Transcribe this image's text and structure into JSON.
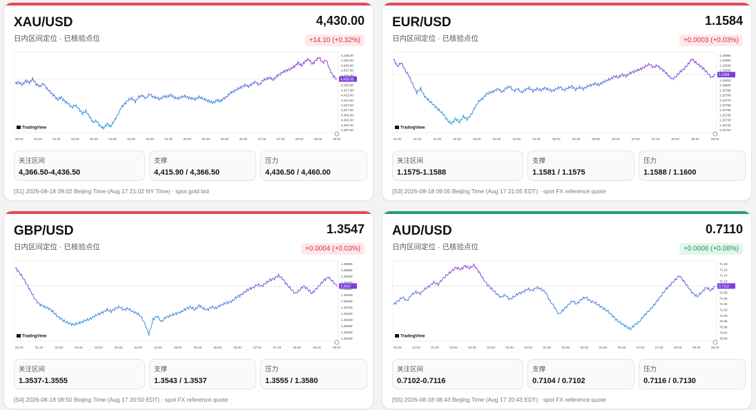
{
  "cards": [
    {
      "pair": "XAU/USD",
      "price": "4,430.00",
      "subtitle": "日内区间定位 · 已核验点位",
      "change": "+14.10 (+0.32%)",
      "accent": "#e24a52",
      "change_style": "red",
      "chart_brand": "TradingView",
      "time_ticks": [
        "00:00",
        "01:00",
        "01:30",
        "02:00",
        "02:30",
        "03:00",
        "03:30",
        "04:00",
        "04:30",
        "05:00",
        "05:30",
        "06:00",
        "06:30",
        "07:00",
        "07:30",
        "08:00",
        "08:30",
        "09:00"
      ],
      "price_ticks": [
        "4,435.00",
        "4,432.50",
        "4,430.00",
        "4,427.50",
        "4,425.00",
        "4,422.50",
        "4,420.00",
        "4,417.50",
        "4,415.00",
        "4,412.50",
        "4,410.00",
        "4,407.50",
        "4,405.00",
        "4,402.50",
        "4,400.00",
        "4,397.50"
      ],
      "current_tag": "4,430.00",
      "boxes": [
        {
          "label": "关注区间",
          "value": "4,366.50-4,436.50"
        },
        {
          "label": "支撑",
          "value": "4,415.90 / 4,366.50"
        },
        {
          "label": "压力",
          "value": "4,436.50 / 4,460.00"
        }
      ],
      "footer": "[S1] 2026-08-18 09:02 Beijing Time (Aug 17 21:02 NY Time) · spot gold bid",
      "series": [
        0.62,
        0.64,
        0.6,
        0.66,
        0.63,
        0.68,
        0.61,
        0.58,
        0.62,
        0.55,
        0.5,
        0.46,
        0.4,
        0.44,
        0.38,
        0.35,
        0.3,
        0.33,
        0.28,
        0.22,
        0.25,
        0.18,
        0.1,
        0.12,
        0.05,
        0.02,
        0.08,
        0.04,
        0.12,
        0.2,
        0.3,
        0.35,
        0.4,
        0.42,
        0.38,
        0.44,
        0.46,
        0.42,
        0.48,
        0.44,
        0.43,
        0.41,
        0.45,
        0.44,
        0.47,
        0.43,
        0.42,
        0.44,
        0.45,
        0.43,
        0.42,
        0.41,
        0.44,
        0.42,
        0.4,
        0.38,
        0.36,
        0.4,
        0.38,
        0.42,
        0.45,
        0.5,
        0.52,
        0.55,
        0.57,
        0.6,
        0.58,
        0.62,
        0.64,
        0.6,
        0.66,
        0.68,
        0.7,
        0.67,
        0.72,
        0.75,
        0.78,
        0.8,
        0.82,
        0.85,
        0.9,
        0.86,
        0.92,
        0.95,
        0.88,
        0.93,
        0.97,
        0.9,
        0.94,
        0.8,
        0.72,
        0.68
      ]
    },
    {
      "pair": "EUR/USD",
      "price": "1.1584",
      "subtitle": "日内区间定位 · 已核验点位",
      "change": "+0.0003 (+0.03%)",
      "accent": "#e24a52",
      "change_style": "red",
      "chart_brand": "TradingView",
      "time_ticks": [
        "01:00",
        "01:30",
        "02:00",
        "02:30",
        "03:00",
        "03:30",
        "04:00",
        "04:30",
        "05:00",
        "05:30",
        "06:00",
        "06:30",
        "07:00",
        "07:30",
        "08:00",
        "08:30",
        "09:00"
      ],
      "price_ticks": [
        "1.15860",
        "1.15850",
        "1.15840",
        "1.15830",
        "1.15820",
        "1.15810",
        "1.15800",
        "1.15790",
        "1.15780",
        "1.15770",
        "1.15760",
        "1.15750",
        "1.15740",
        "1.15730",
        "1.15720",
        "1.15710"
      ],
      "current_tag": "1.1584",
      "boxes": [
        {
          "label": "关注区间",
          "value": "1.1575-1.1588"
        },
        {
          "label": "支撑",
          "value": "1.1581 / 1.1575"
        },
        {
          "label": "压力",
          "value": "1.1588 / 1.1600"
        }
      ],
      "footer": "[S3] 2026-08-18 09:05 Beijing Time (Aug 17 21:05 EDT) · spot FX reference quote",
      "series": [
        0.95,
        0.85,
        0.9,
        0.8,
        0.72,
        0.6,
        0.5,
        0.55,
        0.45,
        0.4,
        0.35,
        0.3,
        0.25,
        0.2,
        0.12,
        0.08,
        0.15,
        0.1,
        0.18,
        0.14,
        0.2,
        0.3,
        0.38,
        0.42,
        0.48,
        0.5,
        0.52,
        0.55,
        0.5,
        0.56,
        0.58,
        0.52,
        0.55,
        0.5,
        0.54,
        0.56,
        0.52,
        0.55,
        0.53,
        0.56,
        0.54,
        0.52,
        0.55,
        0.57,
        0.53,
        0.56,
        0.58,
        0.54,
        0.57,
        0.55,
        0.58,
        0.6,
        0.62,
        0.6,
        0.64,
        0.66,
        0.68,
        0.72,
        0.7,
        0.74,
        0.72,
        0.76,
        0.78,
        0.8,
        0.82,
        0.85,
        0.88,
        0.84,
        0.86,
        0.82,
        0.78,
        0.72,
        0.68,
        0.72,
        0.78,
        0.82,
        0.88,
        0.95,
        0.9,
        0.86,
        0.82,
        0.76,
        0.7,
        0.74
      ]
    },
    {
      "pair": "GBP/USD",
      "price": "1.3547",
      "subtitle": "日内区间定位 · 已核验点位",
      "change": "+0.0004 (+0.03%)",
      "accent": "#e24a52",
      "change_style": "red",
      "chart_brand": "TradingView",
      "time_ticks": [
        "01:00",
        "01:30",
        "02:00",
        "02:30",
        "03:00",
        "03:30",
        "04:00",
        "04:30",
        "05:00",
        "05:30",
        "06:00",
        "06:30",
        "07:00",
        "07:30",
        "08:00",
        "08:30",
        "09:00"
      ],
      "price_ticks": [
        "1.35580",
        "1.35560",
        "1.35540",
        "1.35520",
        "1.35500",
        "1.35480",
        "1.35460",
        "1.35440",
        "1.35420",
        "1.35400",
        "1.35380",
        "1.35360",
        "1.35340"
      ],
      "current_tag": "1.3547",
      "boxes": [
        {
          "label": "关注区间",
          "value": "1.3537-1.3555"
        },
        {
          "label": "支撑",
          "value": "1.3543 / 1.3537"
        },
        {
          "label": "压力",
          "value": "1.3555 / 1.3580"
        }
      ],
      "footer": "[S4] 2026-08-18 08:50 Beijing Time (Aug 17 20:50 EDT) · spot FX reference quote",
      "series": [
        0.95,
        0.88,
        0.8,
        0.7,
        0.6,
        0.5,
        0.45,
        0.42,
        0.4,
        0.36,
        0.3,
        0.26,
        0.22,
        0.2,
        0.18,
        0.2,
        0.22,
        0.24,
        0.26,
        0.3,
        0.32,
        0.35,
        0.38,
        0.36,
        0.4,
        0.42,
        0.38,
        0.4,
        0.36,
        0.34,
        0.3,
        0.2,
        0.05,
        0.25,
        0.3,
        0.22,
        0.28,
        0.3,
        0.32,
        0.34,
        0.36,
        0.4,
        0.42,
        0.38,
        0.44,
        0.4,
        0.38,
        0.42,
        0.4,
        0.44,
        0.46,
        0.48,
        0.5,
        0.55,
        0.58,
        0.62,
        0.66,
        0.68,
        0.72,
        0.7,
        0.74,
        0.78,
        0.8,
        0.84,
        0.8,
        0.72,
        0.66,
        0.6,
        0.64,
        0.7,
        0.66,
        0.6,
        0.66,
        0.72,
        0.78,
        0.82,
        0.76,
        0.7
      ]
    },
    {
      "pair": "AUD/USD",
      "price": "0.7110",
      "subtitle": "日内区间定位 · 已核验点位",
      "change": "+0.0006 (+0.08%)",
      "accent": "#1f9e72",
      "change_style": "green",
      "chart_brand": "TradingView",
      "time_ticks": [
        "00:30",
        "01:00",
        "01:30",
        "02:00",
        "02:30",
        "03:00",
        "03:30",
        "04:00",
        "04:30",
        "05:00",
        "05:30",
        "06:00",
        "06:30",
        "07:00",
        "07:30",
        "08:00",
        "08:30",
        "09:00"
      ],
      "price_ticks": [
        "71.18",
        "71.16",
        "71.14",
        "71.12",
        "71.10",
        "71.08",
        "71.06",
        "71.04",
        "71.02",
        "71.00",
        "70.98",
        "70.96",
        "70.94",
        "70.92"
      ],
      "current_tag": "0.7110",
      "boxes": [
        {
          "label": "关注区间",
          "value": "0.7102-0.7116"
        },
        {
          "label": "支撑",
          "value": "0.7104 / 0.7102"
        },
        {
          "label": "压力",
          "value": "0.7116 / 0.7130"
        }
      ],
      "footer": "[S5] 2026-08-18 08:43 Beijing Time (Aug 17 20:43 EDT) · spot FX reference quote",
      "series": [
        0.45,
        0.5,
        0.55,
        0.5,
        0.58,
        0.62,
        0.6,
        0.66,
        0.7,
        0.75,
        0.72,
        0.8,
        0.85,
        0.9,
        0.95,
        0.92,
        0.97,
        0.94,
        0.98,
        0.9,
        0.8,
        0.72,
        0.66,
        0.6,
        0.55,
        0.58,
        0.52,
        0.56,
        0.6,
        0.62,
        0.66,
        0.64,
        0.68,
        0.66,
        0.62,
        0.5,
        0.42,
        0.32,
        0.38,
        0.44,
        0.5,
        0.46,
        0.52,
        0.55,
        0.5,
        0.48,
        0.44,
        0.4,
        0.36,
        0.3,
        0.24,
        0.2,
        0.16,
        0.12,
        0.18,
        0.22,
        0.3,
        0.36,
        0.42,
        0.5,
        0.58,
        0.66,
        0.72,
        0.78,
        0.84,
        0.76,
        0.68,
        0.6,
        0.56,
        0.62,
        0.68,
        0.64,
        0.7
      ]
    }
  ]
}
